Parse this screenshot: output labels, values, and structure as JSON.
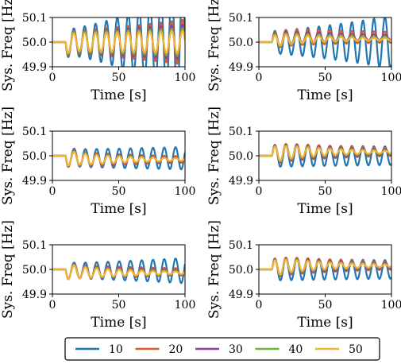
{
  "chart_data": [
    {
      "type": "line",
      "xlabel": "Time [s]",
      "ylabel": "Sys. Freq [Hz]",
      "xlim": [
        0,
        100
      ],
      "ylim": [
        49.9,
        50.1
      ],
      "xticks": [
        "0",
        "50",
        "100"
      ],
      "yticks": [
        "49.9",
        "50.0",
        "50.1"
      ],
      "onset": 10,
      "trough": -0.05,
      "period": 8.2,
      "direction": -1,
      "series": [
        {
          "name": "10",
          "color": "#1f77b4",
          "amplitude": 0.05,
          "growth": 0.018,
          "offset": 0.0
        },
        {
          "name": "20",
          "color": "#d45d2b",
          "amplitude": 0.045,
          "growth": 0.008,
          "offset": 0.0
        },
        {
          "name": "30",
          "color": "#8c3fa8",
          "amplitude": 0.042,
          "growth": 0.006,
          "offset": 0.0
        },
        {
          "name": "40",
          "color": "#6bb53a",
          "amplitude": 0.04,
          "growth": 0.004,
          "offset": 0.0
        },
        {
          "name": "50",
          "color": "#f5b22e",
          "amplitude": 0.035,
          "growth": 0.003,
          "offset": 0.0
        }
      ]
    },
    {
      "type": "line",
      "xlabel": "Time [s]",
      "ylabel": "Sys. Freq [Hz]",
      "xlim": [
        0,
        100
      ],
      "ylim": [
        49.9,
        50.1
      ],
      "xticks": [
        "0",
        "50",
        "100"
      ],
      "yticks": [
        "49.9",
        "50.0",
        "50.1"
      ],
      "onset": 10,
      "period": 8.3,
      "direction": 1,
      "series": [
        {
          "name": "10",
          "color": "#1f77b4",
          "amplitude": 0.045,
          "growth": 0.0098,
          "offset": 0.0
        },
        {
          "name": "20",
          "color": "#d45d2b",
          "amplitude": 0.035,
          "growth": -0.005,
          "offset": 0.02
        },
        {
          "name": "30",
          "color": "#8c3fa8",
          "amplitude": 0.03,
          "growth": -0.012,
          "offset": 0.02
        },
        {
          "name": "40",
          "color": "#6bb53a",
          "amplitude": 0.028,
          "growth": -0.016,
          "offset": 0.015
        },
        {
          "name": "50",
          "color": "#f5b22e",
          "amplitude": 0.025,
          "growth": -0.02,
          "offset": 0.012
        }
      ]
    },
    {
      "type": "line",
      "xlabel": "Time [s]",
      "ylabel": "Sys. Freq [Hz]",
      "xlim": [
        0,
        100
      ],
      "ylim": [
        49.9,
        50.1
      ],
      "xticks": [
        "0",
        "50",
        "100"
      ],
      "yticks": [
        "49.9",
        "50.0",
        "50.1"
      ],
      "onset": 10,
      "trough": -0.04,
      "period": 8.5,
      "direction": -1,
      "series": [
        {
          "name": "10",
          "color": "#1f77b4",
          "amplitude": 0.035,
          "growth": 0.003,
          "offset": -0.01
        },
        {
          "name": "20",
          "color": "#d45d2b",
          "amplitude": 0.033,
          "growth": -0.01,
          "offset": -0.015
        },
        {
          "name": "30",
          "color": "#8c3fa8",
          "amplitude": 0.032,
          "growth": -0.015,
          "offset": -0.015
        },
        {
          "name": "40",
          "color": "#6bb53a",
          "amplitude": 0.031,
          "growth": -0.018,
          "offset": -0.015
        },
        {
          "name": "50",
          "color": "#f5b22e",
          "amplitude": 0.03,
          "growth": -0.02,
          "offset": -0.015
        }
      ]
    },
    {
      "type": "line",
      "xlabel": "Time [s]",
      "ylabel": "Sys. Freq [Hz]",
      "xlim": [
        0,
        100
      ],
      "ylim": [
        49.9,
        50.1
      ],
      "xticks": [
        "0",
        "50",
        "100"
      ],
      "yticks": [
        "49.9",
        "50.0",
        "50.1"
      ],
      "onset": 10,
      "period": 8.3,
      "direction": 1,
      "series": [
        {
          "name": "10",
          "color": "#1f77b4",
          "amplitude": 0.045,
          "growth": -0.002,
          "offset": 0.0
        },
        {
          "name": "20",
          "color": "#d45d2b",
          "amplitude": 0.04,
          "growth": -0.01,
          "offset": 0.015
        },
        {
          "name": "30",
          "color": "#8c3fa8",
          "amplitude": 0.038,
          "growth": -0.014,
          "offset": 0.015
        },
        {
          "name": "40",
          "color": "#6bb53a",
          "amplitude": 0.036,
          "growth": -0.018,
          "offset": 0.015
        },
        {
          "name": "50",
          "color": "#f5b22e",
          "amplitude": 0.034,
          "growth": -0.022,
          "offset": 0.015
        }
      ]
    },
    {
      "type": "line",
      "xlabel": "Time [s]",
      "ylabel": "Sys. Freq [Hz]",
      "xlim": [
        0,
        100
      ],
      "ylim": [
        49.9,
        50.1
      ],
      "xticks": [
        "0",
        "50",
        "100"
      ],
      "yticks": [
        "49.9",
        "50.0",
        "50.1"
      ],
      "onset": 10,
      "trough": -0.04,
      "period": 8.5,
      "direction": -1,
      "series": [
        {
          "name": "10",
          "color": "#1f77b4",
          "amplitude": 0.03,
          "growth": 0.006,
          "offset": -0.005
        },
        {
          "name": "20",
          "color": "#d45d2b",
          "amplitude": 0.03,
          "growth": -0.008,
          "offset": -0.01
        },
        {
          "name": "30",
          "color": "#8c3fa8",
          "amplitude": 0.03,
          "growth": -0.013,
          "offset": -0.012
        },
        {
          "name": "40",
          "color": "#6bb53a",
          "amplitude": 0.03,
          "growth": -0.017,
          "offset": -0.013
        },
        {
          "name": "50",
          "color": "#f5b22e",
          "amplitude": 0.03,
          "growth": -0.02,
          "offset": -0.014
        }
      ]
    },
    {
      "type": "line",
      "xlabel": "Time [s]",
      "ylabel": "Sys. Freq [Hz]",
      "xlim": [
        0,
        100
      ],
      "ylim": [
        49.9,
        50.1
      ],
      "xticks": [
        "0",
        "50",
        "100"
      ],
      "yticks": [
        "49.9",
        "50.0",
        "50.1"
      ],
      "onset": 10,
      "period": 8.3,
      "direction": 1,
      "series": [
        {
          "name": "10",
          "color": "#1f77b4",
          "amplitude": 0.045,
          "growth": -0.002,
          "offset": 0.0
        },
        {
          "name": "20",
          "color": "#d45d2b",
          "amplitude": 0.04,
          "growth": -0.01,
          "offset": 0.015
        },
        {
          "name": "30",
          "color": "#8c3fa8",
          "amplitude": 0.038,
          "growth": -0.014,
          "offset": 0.015
        },
        {
          "name": "40",
          "color": "#6bb53a",
          "amplitude": 0.036,
          "growth": -0.018,
          "offset": 0.015
        },
        {
          "name": "50",
          "color": "#f5b22e",
          "amplitude": 0.034,
          "growth": -0.022,
          "offset": 0.015
        }
      ]
    }
  ],
  "legend": {
    "placement": "bottom-center",
    "entries": [
      {
        "label": "10",
        "color": "#1f77b4"
      },
      {
        "label": "20",
        "color": "#d45d2b"
      },
      {
        "label": "30",
        "color": "#8c3fa8"
      },
      {
        "label": "40",
        "color": "#6bb53a"
      },
      {
        "label": "50",
        "color": "#f5b22e"
      }
    ]
  }
}
